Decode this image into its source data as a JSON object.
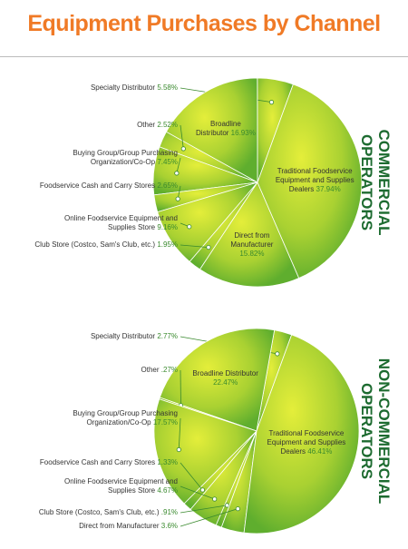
{
  "title": "Equipment Purchases by Channel",
  "chart_data": [
    {
      "type": "pie",
      "label": [
        "COMMERCIAL",
        "OPERATORS"
      ],
      "categories": [
        "Specialty Distributor",
        "Broadline Distributor",
        "Other",
        "Buying Group/Group Purchasing Organization/Co-Op",
        "Foodservice Cash and Carry Stores",
        "Online Foodservice Equipment and Supplies Store",
        "Club Store (Costco, Sam's Club, etc.)",
        "Direct from Manufacturer",
        "Traditional Foodservice Equipment and Supplies Dealers"
      ],
      "values": [
        5.58,
        16.93,
        2.52,
        7.45,
        2.65,
        9.16,
        1.95,
        15.82,
        37.94
      ],
      "value_labels": [
        "5.58%",
        "16.93%",
        "2.52%",
        "7.45%",
        "2.65%",
        "9.16%",
        "1.95%",
        "15.82%",
        "37.94%"
      ]
    },
    {
      "type": "pie",
      "label": [
        "NON-COMMERCIAL",
        "OPERATORS"
      ],
      "categories": [
        "Specialty Distributor",
        "Broadline Distributor",
        "Other",
        "Buying Group/Group Purchasing Organization/Co-Op",
        "Foodservice Cash and Carry Stores",
        "Online Foodservice Equipment and Supplies Store",
        "Club Store (Costco, Sam's Club, etc.)",
        "Direct from Manufacturer",
        "Traditional Foodservice Equipment and Supplies Dealers"
      ],
      "values": [
        2.77,
        22.47,
        0.27,
        17.57,
        1.33,
        4.67,
        0.91,
        3.6,
        46.41
      ],
      "value_labels": [
        "2.77%",
        "22.47%",
        ".27%",
        "17.57%",
        "1.33%",
        "4.67%",
        ".91%",
        "3.6%",
        "46.41%"
      ]
    }
  ]
}
